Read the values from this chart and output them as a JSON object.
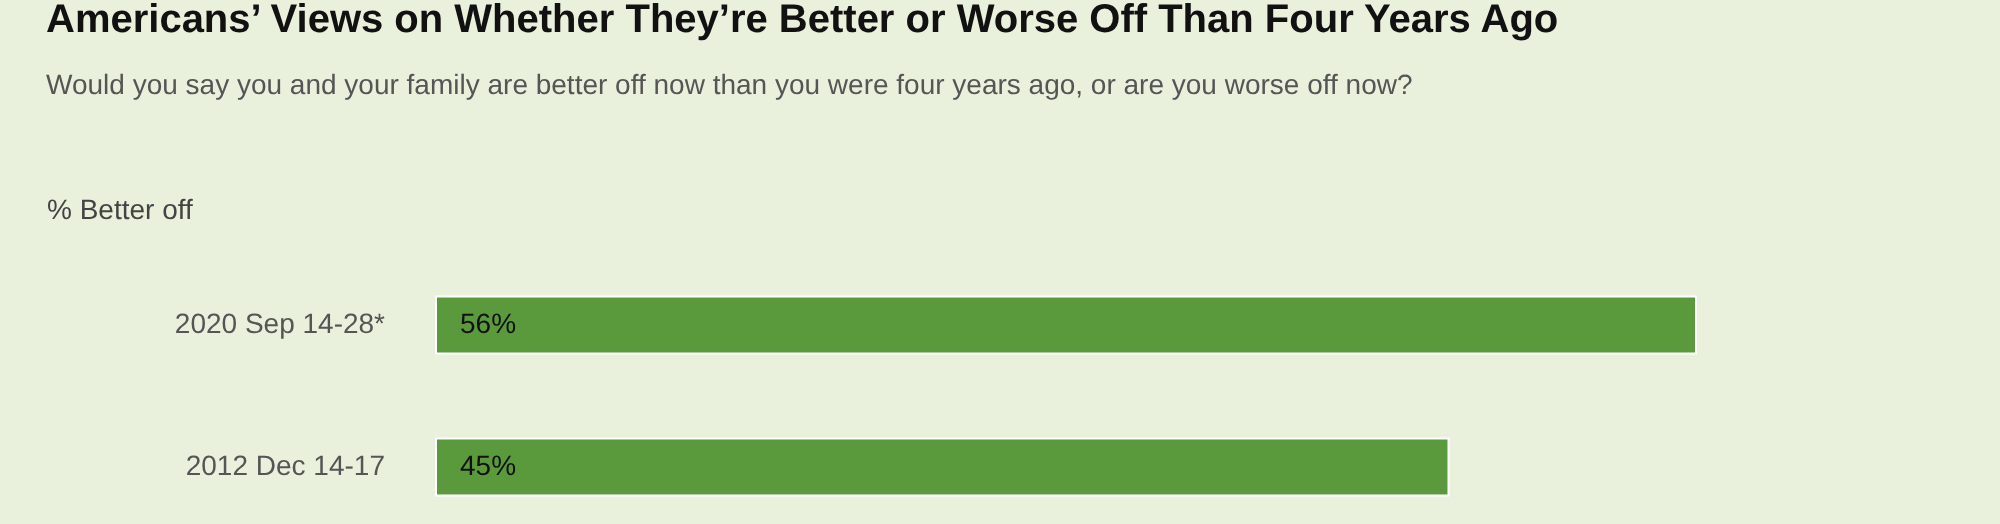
{
  "chart_data": {
    "type": "bar",
    "orientation": "horizontal",
    "title": "Americans’ Views on Whether They’re Better or Worse Off Than Four Years Ago",
    "subtitle": "Would you say you and your family are better off now than you were four years ago, or are you worse off now?",
    "xlabel": "% Better off",
    "categories": [
      "2020 Sep 14-28*",
      "2012 Dec 14-17"
    ],
    "values": [
      56,
      45
    ],
    "value_labels": [
      "56%",
      "45%"
    ],
    "color": "#5a9a3c"
  }
}
